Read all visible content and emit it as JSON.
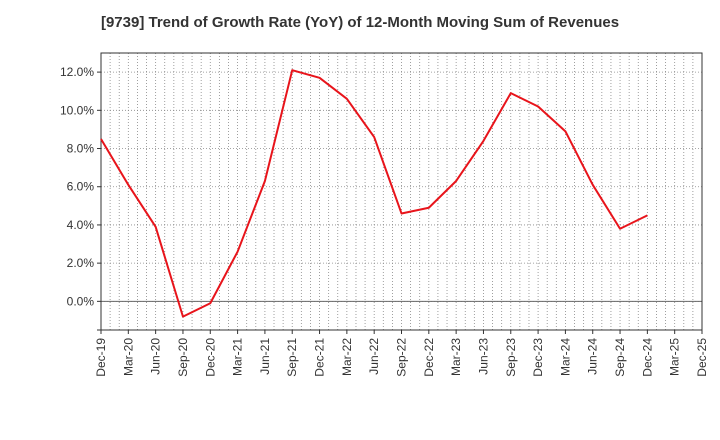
{
  "chart_data": {
    "type": "line",
    "title": "[9739]  Trend of Growth Rate (YoY) of 12-Month Moving Sum of Revenues",
    "xlabel": "",
    "ylabel": "",
    "grid": true,
    "ylim": [
      -1.5,
      13.0
    ],
    "y_ticks": [
      "-1.5",
      "0.0",
      "2.0",
      "4.0",
      "6.0",
      "8.0",
      "10.0",
      "12.0"
    ],
    "y_tick_labels": [
      "",
      "0.0%",
      "2.0%",
      "4.0%",
      "6.0%",
      "8.0%",
      "10.0%",
      "12.0%"
    ],
    "x_tick_labels": [
      "Dec-19",
      "Mar-20",
      "Jun-20",
      "Sep-20",
      "Dec-20",
      "Mar-21",
      "Jun-21",
      "Sep-21",
      "Dec-21",
      "Mar-22",
      "Jun-22",
      "Sep-22",
      "Dec-22",
      "Mar-23",
      "Jun-23",
      "Sep-23",
      "Dec-23",
      "Mar-24",
      "Jun-24",
      "Sep-24",
      "Dec-24",
      "Mar-25",
      "Dec-25"
    ],
    "series": [
      {
        "color": "#e8141b",
        "x": [
          "Dec-19",
          "Mar-20",
          "Jun-20",
          "Sep-20",
          "Dec-20",
          "Mar-21",
          "Jun-21",
          "Sep-21",
          "Dec-21",
          "Mar-22",
          "Jun-22",
          "Sep-22",
          "Dec-22",
          "Mar-23",
          "Jun-23",
          "Sep-23",
          "Dec-23",
          "Mar-24",
          "Jun-24",
          "Sep-24",
          "Dec-24"
        ],
        "values": [
          8.5,
          6.1,
          3.9,
          -0.8,
          -0.1,
          2.6,
          6.3,
          12.1,
          11.7,
          10.6,
          8.6,
          4.6,
          4.9,
          6.3,
          8.4,
          10.9,
          10.2,
          8.9,
          6.1,
          3.8,
          4.5
        ]
      }
    ]
  }
}
